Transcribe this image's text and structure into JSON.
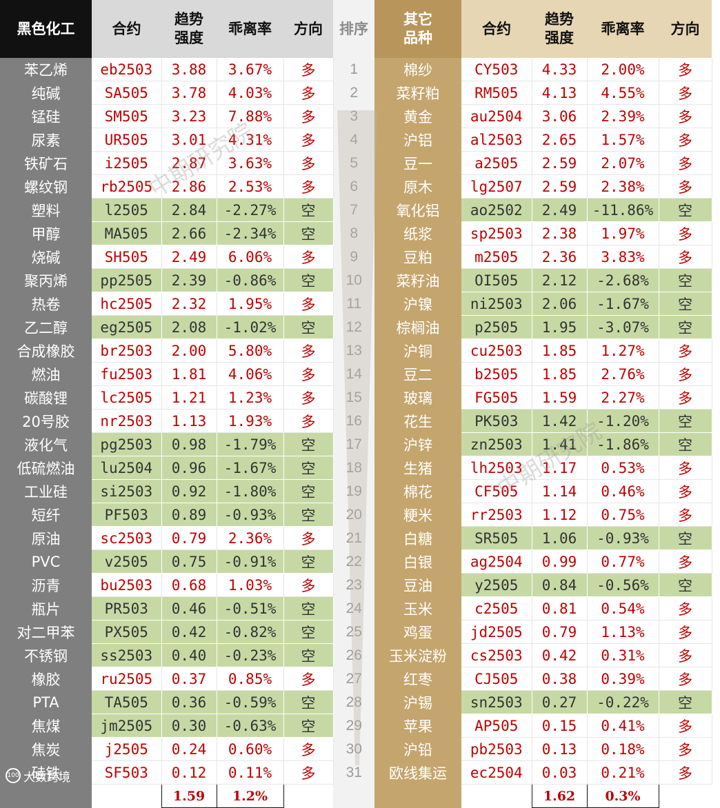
{
  "headers": {
    "left_category": "黑色化工",
    "contract": "合约",
    "strength": "趋势强度",
    "deviation": "乖离率",
    "direction": "方向",
    "rank": "排序",
    "right_category": "其它品种"
  },
  "rows": [
    {
      "rank": "1",
      "left": {
        "name": "苯乙烯",
        "contract": "eb2503",
        "strength": "3.88",
        "deviation": "3.67%",
        "direction": "多"
      },
      "right": {
        "name": "棉纱",
        "contract": "CY503",
        "strength": "4.33",
        "deviation": "2.00%",
        "direction": "多"
      }
    },
    {
      "rank": "2",
      "left": {
        "name": "纯碱",
        "contract": "SA505",
        "strength": "3.78",
        "deviation": "4.03%",
        "direction": "多"
      },
      "right": {
        "name": "菜籽粕",
        "contract": "RM505",
        "strength": "4.13",
        "deviation": "4.55%",
        "direction": "多"
      }
    },
    {
      "rank": "3",
      "left": {
        "name": "锰硅",
        "contract": "SM505",
        "strength": "3.23",
        "deviation": "7.88%",
        "direction": "多"
      },
      "right": {
        "name": "黄金",
        "contract": "au2504",
        "strength": "3.06",
        "deviation": "2.39%",
        "direction": "多"
      }
    },
    {
      "rank": "4",
      "left": {
        "name": "尿素",
        "contract": "UR505",
        "strength": "3.01",
        "deviation": "4.31%",
        "direction": "多"
      },
      "right": {
        "name": "沪铝",
        "contract": "al2503",
        "strength": "2.65",
        "deviation": "1.57%",
        "direction": "多"
      }
    },
    {
      "rank": "5",
      "left": {
        "name": "铁矿石",
        "contract": "i2505",
        "strength": "2.87",
        "deviation": "3.63%",
        "direction": "多"
      },
      "right": {
        "name": "豆一",
        "contract": "a2505",
        "strength": "2.59",
        "deviation": "2.07%",
        "direction": "多"
      }
    },
    {
      "rank": "6",
      "left": {
        "name": "螺纹钢",
        "contract": "rb2505",
        "strength": "2.86",
        "deviation": "2.53%",
        "direction": "多"
      },
      "right": {
        "name": "原木",
        "contract": "lg2507",
        "strength": "2.59",
        "deviation": "2.38%",
        "direction": "多"
      }
    },
    {
      "rank": "7",
      "left": {
        "name": "塑料",
        "contract": "l2505",
        "strength": "2.84",
        "deviation": "-2.27%",
        "direction": "空"
      },
      "right": {
        "name": "氧化铝",
        "contract": "ao2502",
        "strength": "2.49",
        "deviation": "-11.86%",
        "direction": "空"
      }
    },
    {
      "rank": "8",
      "left": {
        "name": "甲醇",
        "contract": "MA505",
        "strength": "2.66",
        "deviation": "-2.34%",
        "direction": "空"
      },
      "right": {
        "name": "纸浆",
        "contract": "sp2503",
        "strength": "2.38",
        "deviation": "1.97%",
        "direction": "多"
      }
    },
    {
      "rank": "9",
      "left": {
        "name": "烧碱",
        "contract": "SH505",
        "strength": "2.49",
        "deviation": "6.06%",
        "direction": "多"
      },
      "right": {
        "name": "豆粕",
        "contract": "m2505",
        "strength": "2.36",
        "deviation": "3.83%",
        "direction": "多"
      }
    },
    {
      "rank": "10",
      "left": {
        "name": "聚丙烯",
        "contract": "pp2505",
        "strength": "2.39",
        "deviation": "-0.86%",
        "direction": "空"
      },
      "right": {
        "name": "菜籽油",
        "contract": "OI505",
        "strength": "2.12",
        "deviation": "-2.68%",
        "direction": "空"
      }
    },
    {
      "rank": "11",
      "left": {
        "name": "热卷",
        "contract": "hc2505",
        "strength": "2.32",
        "deviation": "1.95%",
        "direction": "多"
      },
      "right": {
        "name": "沪镍",
        "contract": "ni2503",
        "strength": "2.06",
        "deviation": "-1.67%",
        "direction": "空"
      }
    },
    {
      "rank": "12",
      "left": {
        "name": "乙二醇",
        "contract": "eg2505",
        "strength": "2.08",
        "deviation": "-1.02%",
        "direction": "空"
      },
      "right": {
        "name": "棕榈油",
        "contract": "p2505",
        "strength": "1.95",
        "deviation": "-3.07%",
        "direction": "空"
      }
    },
    {
      "rank": "13",
      "left": {
        "name": "合成橡胶",
        "contract": "br2503",
        "strength": "2.00",
        "deviation": "5.80%",
        "direction": "多"
      },
      "right": {
        "name": "沪铜",
        "contract": "cu2503",
        "strength": "1.85",
        "deviation": "1.27%",
        "direction": "多"
      }
    },
    {
      "rank": "14",
      "left": {
        "name": "燃油",
        "contract": "fu2503",
        "strength": "1.81",
        "deviation": "4.06%",
        "direction": "多"
      },
      "right": {
        "name": "豆二",
        "contract": "b2505",
        "strength": "1.85",
        "deviation": "2.76%",
        "direction": "多"
      }
    },
    {
      "rank": "15",
      "left": {
        "name": "碳酸锂",
        "contract": "lc2505",
        "strength": "1.21",
        "deviation": "1.23%",
        "direction": "多"
      },
      "right": {
        "name": "玻璃",
        "contract": "FG505",
        "strength": "1.59",
        "deviation": "2.27%",
        "direction": "多"
      }
    },
    {
      "rank": "16",
      "left": {
        "name": "20号胶",
        "contract": "nr2503",
        "strength": "1.13",
        "deviation": "1.93%",
        "direction": "多"
      },
      "right": {
        "name": "花生",
        "contract": "PK503",
        "strength": "1.42",
        "deviation": "-1.20%",
        "direction": "空"
      }
    },
    {
      "rank": "17",
      "left": {
        "name": "液化气",
        "contract": "pg2503",
        "strength": "0.98",
        "deviation": "-1.79%",
        "direction": "空"
      },
      "right": {
        "name": "沪锌",
        "contract": "zn2503",
        "strength": "1.41",
        "deviation": "-1.86%",
        "direction": "空"
      }
    },
    {
      "rank": "18",
      "left": {
        "name": "低硫燃油",
        "contract": "lu2504",
        "strength": "0.96",
        "deviation": "-1.67%",
        "direction": "空"
      },
      "right": {
        "name": "生猪",
        "contract": "lh2503",
        "strength": "1.17",
        "deviation": "0.53%",
        "direction": "多"
      }
    },
    {
      "rank": "19",
      "left": {
        "name": "工业硅",
        "contract": "si2503",
        "strength": "0.92",
        "deviation": "-1.80%",
        "direction": "空"
      },
      "right": {
        "name": "棉花",
        "contract": "CF505",
        "strength": "1.14",
        "deviation": "0.46%",
        "direction": "多"
      }
    },
    {
      "rank": "20",
      "left": {
        "name": "短纤",
        "contract": "PF503",
        "strength": "0.89",
        "deviation": "-0.93%",
        "direction": "空"
      },
      "right": {
        "name": "粳米",
        "contract": "rr2503",
        "strength": "1.12",
        "deviation": "0.75%",
        "direction": "多"
      }
    },
    {
      "rank": "21",
      "left": {
        "name": "原油",
        "contract": "sc2503",
        "strength": "0.79",
        "deviation": "2.36%",
        "direction": "多"
      },
      "right": {
        "name": "白糖",
        "contract": "SR505",
        "strength": "1.06",
        "deviation": "-0.93%",
        "direction": "空"
      }
    },
    {
      "rank": "22",
      "left": {
        "name": "PVC",
        "contract": "v2505",
        "strength": "0.75",
        "deviation": "-0.91%",
        "direction": "空"
      },
      "right": {
        "name": "白银",
        "contract": "ag2504",
        "strength": "0.99",
        "deviation": "0.77%",
        "direction": "多"
      }
    },
    {
      "rank": "23",
      "left": {
        "name": "沥青",
        "contract": "bu2503",
        "strength": "0.68",
        "deviation": "1.03%",
        "direction": "多"
      },
      "right": {
        "name": "豆油",
        "contract": "y2505",
        "strength": "0.84",
        "deviation": "-0.56%",
        "direction": "空"
      }
    },
    {
      "rank": "24",
      "left": {
        "name": "瓶片",
        "contract": "PR503",
        "strength": "0.46",
        "deviation": "-0.51%",
        "direction": "空"
      },
      "right": {
        "name": "玉米",
        "contract": "c2505",
        "strength": "0.81",
        "deviation": "0.54%",
        "direction": "多"
      }
    },
    {
      "rank": "25",
      "left": {
        "name": "对二甲苯",
        "contract": "PX505",
        "strength": "0.42",
        "deviation": "-0.82%",
        "direction": "空"
      },
      "right": {
        "name": "鸡蛋",
        "contract": "jd2505",
        "strength": "0.79",
        "deviation": "1.13%",
        "direction": "多"
      }
    },
    {
      "rank": "26",
      "left": {
        "name": "不锈钢",
        "contract": "ss2503",
        "strength": "0.40",
        "deviation": "-0.23%",
        "direction": "空"
      },
      "right": {
        "name": "玉米淀粉",
        "contract": "cs2503",
        "strength": "0.42",
        "deviation": "0.31%",
        "direction": "多"
      }
    },
    {
      "rank": "27",
      "left": {
        "name": "橡胶",
        "contract": "ru2505",
        "strength": "0.37",
        "deviation": "0.85%",
        "direction": "多"
      },
      "right": {
        "name": "红枣",
        "contract": "CJ505",
        "strength": "0.38",
        "deviation": "0.39%",
        "direction": "多"
      }
    },
    {
      "rank": "28",
      "left": {
        "name": "PTA",
        "contract": "TA505",
        "strength": "0.36",
        "deviation": "-0.59%",
        "direction": "空"
      },
      "right": {
        "name": "沪锡",
        "contract": "sn2503",
        "strength": "0.27",
        "deviation": "-0.22%",
        "direction": "空"
      }
    },
    {
      "rank": "29",
      "left": {
        "name": "焦煤",
        "contract": "jm2505",
        "strength": "0.30",
        "deviation": "-0.63%",
        "direction": "空"
      },
      "right": {
        "name": "苹果",
        "contract": "AP505",
        "strength": "0.15",
        "deviation": "0.41%",
        "direction": "多"
      }
    },
    {
      "rank": "30",
      "left": {
        "name": "焦炭",
        "contract": "j2505",
        "strength": "0.24",
        "deviation": "0.60%",
        "direction": "多"
      },
      "right": {
        "name": "沪铅",
        "contract": "pb2503",
        "strength": "0.13",
        "deviation": "0.18%",
        "direction": "多"
      }
    },
    {
      "rank": "31",
      "left": {
        "name": "硅铁",
        "contract": "SF503",
        "strength": "0.12",
        "deviation": "0.11%",
        "direction": "多"
      },
      "right": {
        "name": "欧线集运",
        "contract": "ec2504",
        "strength": "0.03",
        "deviation": "0.21%",
        "direction": "多"
      }
    }
  ],
  "footer": {
    "left_avg_strength": "1.59",
    "left_avg_deviation": "1.2%",
    "right_avg_strength": "1.62",
    "right_avg_deviation": "0.3%"
  },
  "watermarks": [
    "中期研究院",
    "中期研究院"
  ],
  "logo_text": "大数跨境",
  "colors": {
    "long_text": "#c00000",
    "short_fill": "#c6d9a4",
    "left_name_fill": "#7f7f7f",
    "right_name_fill": "#c4a56e",
    "right_header_fill": "#b8955a"
  }
}
